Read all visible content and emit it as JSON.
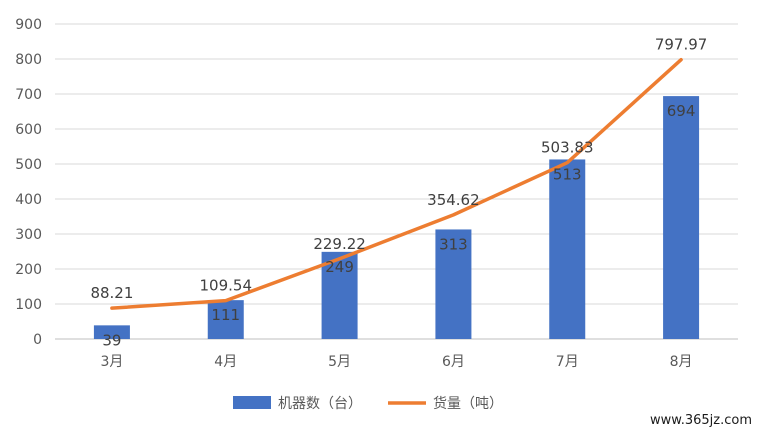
{
  "chart_data": {
    "type": "bar",
    "categories": [
      "3月",
      "4月",
      "5月",
      "6月",
      "7月",
      "8月"
    ],
    "series": [
      {
        "name": "机器数（台）",
        "type": "bar",
        "values": [
          39,
          111,
          249,
          313,
          513,
          694
        ]
      },
      {
        "name": "货量（吨）",
        "type": "line",
        "values": [
          88.21,
          109.54,
          229.22,
          354.62,
          503.83,
          797.97
        ]
      }
    ],
    "y_ticks": [
      "0",
      "100",
      "200",
      "300",
      "400",
      "500",
      "600",
      "700",
      "800",
      "900"
    ],
    "ylim": [
      0,
      900
    ],
    "grid": true,
    "legend_position": "bottom",
    "colors": {
      "bar": "#4472C4",
      "line": "#ED7D31",
      "grid": "#D9D9D9"
    }
  },
  "watermark": "www.365jz.com"
}
